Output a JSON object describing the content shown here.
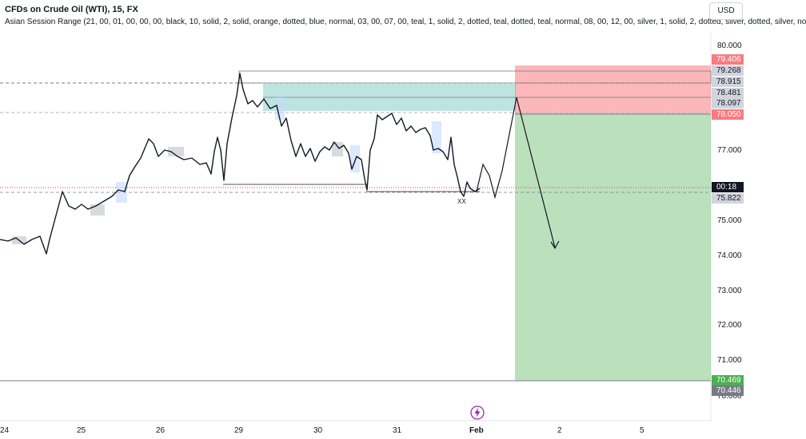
{
  "header": {
    "title": "CFDs on Crude Oil (WTI), 15, FX",
    "indicator": "Asian Session Range (21, 00, 01, 00, 00, 00, black, 10, solid, 2, solid, orange, dotted, blue, normal, 03, 00, 07, 00, teal, 1, solid, 2, dotted, teal, dotted, teal, normal, 08, 00, 12, 00, silver, 1, solid, 2, dotted, silver, dotted, silver, no",
    "currency": "USD"
  },
  "price_axis": {
    "ticks": [
      "80.000",
      "77.000",
      "75.000",
      "74.000",
      "73.000",
      "72.000",
      "71.000",
      "70.000"
    ],
    "labels": [
      {
        "text": "79.406",
        "bg": "#f77c80",
        "fg": "#ffffff"
      },
      {
        "text": "79.268",
        "bg": "#d1d4dc",
        "fg": "#131722"
      },
      {
        "text": "78.915",
        "bg": "#d1d4dc",
        "fg": "#131722"
      },
      {
        "text": "78.481",
        "bg": "#d1d4dc",
        "fg": "#131722"
      },
      {
        "text": "78.097",
        "bg": "#d1d4dc",
        "fg": "#131722"
      },
      {
        "text": "78.050",
        "bg": "#f77c80",
        "fg": "#ffffff"
      },
      {
        "text": "00:18",
        "bg": "#131722",
        "fg": "#ffffff"
      },
      {
        "text": "75.822",
        "bg": "#d1d4dc",
        "fg": "#131722"
      },
      {
        "text": "70.469",
        "bg": "#4caf50",
        "fg": "#ffffff"
      },
      {
        "text": "70.446",
        "bg": "#787b86",
        "fg": "#ffffff"
      }
    ]
  },
  "time_axis": {
    "ticks": [
      "24",
      "25",
      "26",
      "29",
      "30",
      "31",
      "Feb",
      "2",
      "5"
    ]
  },
  "annotations": {
    "marker_text": "XX"
  },
  "colors": {
    "candle": "#131722",
    "stop_zone": "#f77c80",
    "target_zone": "#4caf50",
    "fvg_teal": "#26a69a",
    "session_silver": "#b2b5be",
    "session_blue": "#c5d9ff"
  }
}
